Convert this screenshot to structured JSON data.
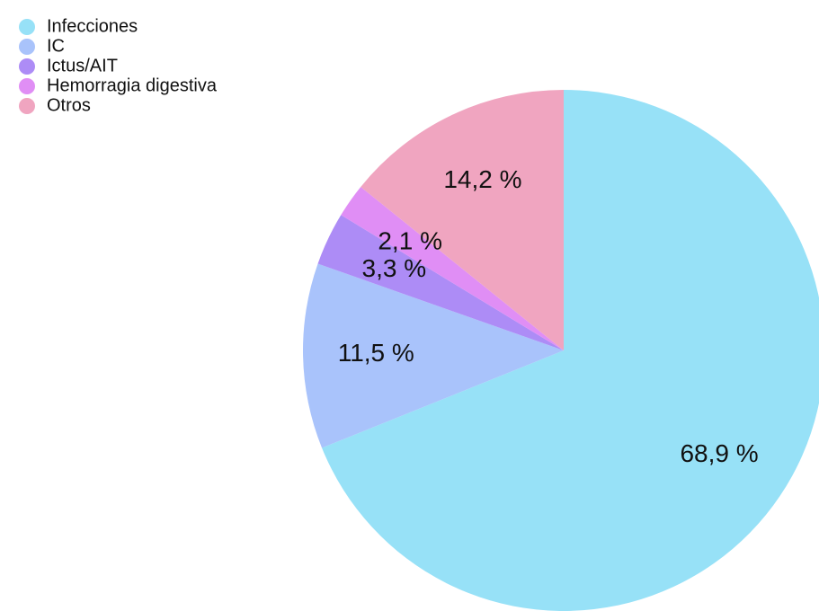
{
  "chart_data": {
    "type": "pie",
    "categories": [
      "Infecciones",
      "IC",
      "Ictus/AIT",
      "Hemorragia digestiva",
      "Otros"
    ],
    "values": [
      68.9,
      11.5,
      3.3,
      2.1,
      14.2
    ],
    "value_labels": [
      "68,9 %",
      "11,5 %",
      "3,3 %",
      "2,1 %",
      "14,2 %"
    ],
    "colors": [
      "#97e1f7",
      "#a9c3fb",
      "#ad8cf6",
      "#e08ef5",
      "#f0a5c0"
    ],
    "legend": "top-left"
  }
}
